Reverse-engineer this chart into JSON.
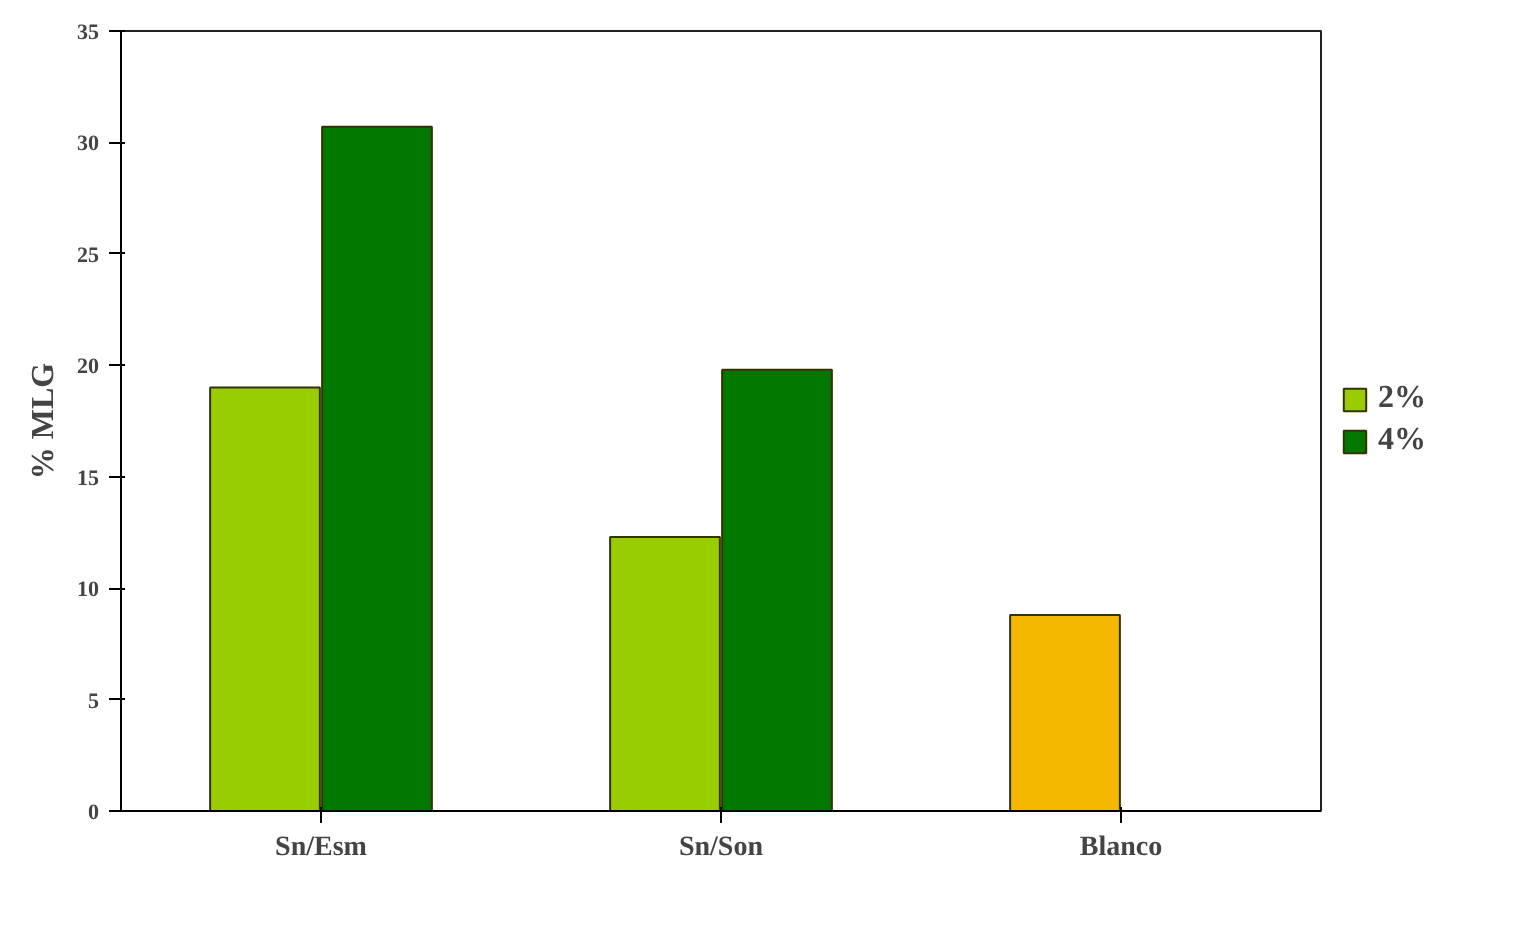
{
  "chart_data": {
    "type": "bar",
    "ylabel": "% MLG",
    "categories": [
      "Sn/Esm",
      "Sn/Son",
      "Blanco"
    ],
    "series": [
      {
        "name": "2%",
        "color": "#9acd00",
        "colors": [
          null,
          null,
          "#f5b800"
        ],
        "values": [
          19.0,
          12.3,
          8.8
        ]
      },
      {
        "name": "4%",
        "color": "#007800",
        "values": [
          30.7,
          19.8,
          null
        ]
      }
    ],
    "ylim": [
      0,
      35
    ],
    "yticks": [
      0,
      5,
      10,
      15,
      20,
      25,
      30,
      35
    ],
    "grid": false,
    "legend": "right"
  }
}
